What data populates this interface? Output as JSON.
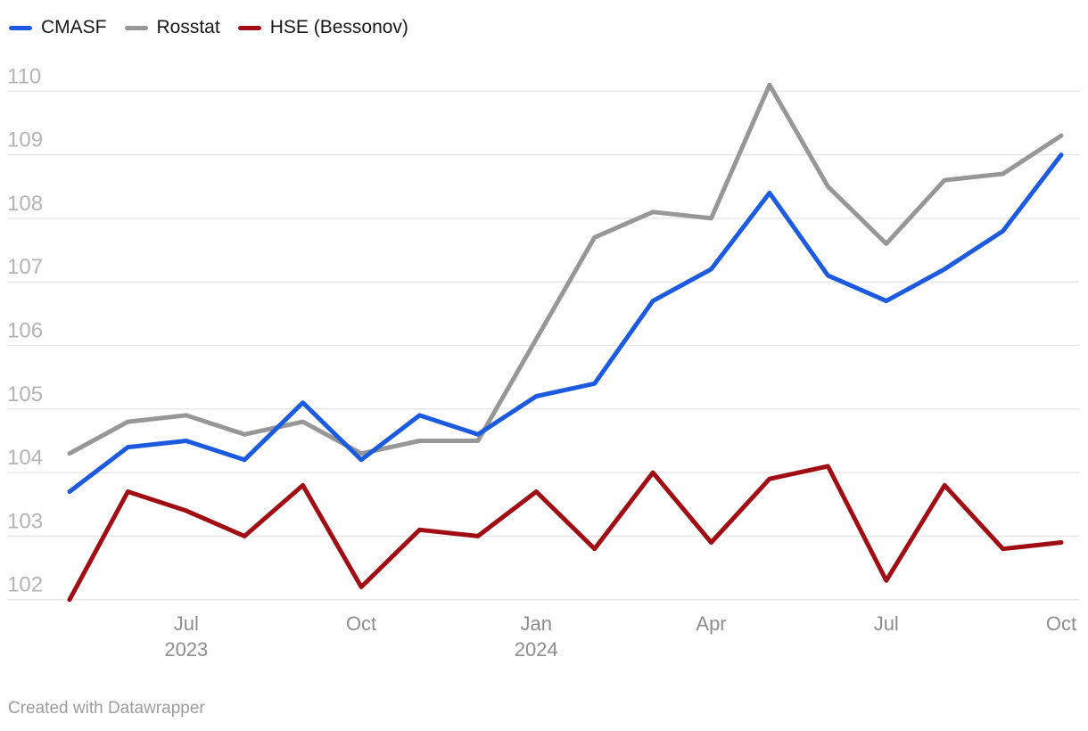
{
  "legend": {
    "items": [
      {
        "label": "CMASF",
        "color": "#1c5bdf"
      },
      {
        "label": "Rosstat",
        "color": "#979797"
      },
      {
        "label": "HSE (Bessonov)",
        "color": "#a00d12"
      }
    ]
  },
  "footer": {
    "text": "Created with Datawrapper"
  },
  "chart_data": {
    "type": "line",
    "x": [
      "2023-05",
      "2023-06",
      "2023-07",
      "2023-08",
      "2023-09",
      "2023-10",
      "2023-11",
      "2023-12",
      "2024-01",
      "2024-02",
      "2024-03",
      "2024-04",
      "2024-05",
      "2024-06",
      "2024-07",
      "2024-08",
      "2024-09",
      "2024-10"
    ],
    "series": [
      {
        "name": "CMASF",
        "color": "#1c5bdf",
        "values": [
          103.7,
          104.4,
          104.5,
          104.2,
          105.1,
          104.2,
          104.9,
          104.6,
          105.2,
          105.4,
          106.7,
          107.2,
          108.4,
          107.1,
          106.7,
          107.2,
          107.8,
          109.0
        ]
      },
      {
        "name": "Rosstat",
        "color": "#979797",
        "values": [
          104.3,
          104.8,
          104.9,
          104.6,
          104.8,
          104.3,
          104.5,
          104.5,
          106.1,
          107.7,
          108.1,
          108.0,
          110.1,
          108.5,
          107.6,
          108.6,
          108.7,
          109.3
        ]
      },
      {
        "name": "HSE (Bessonov)",
        "color": "#a00d12",
        "values": [
          102.0,
          103.7,
          103.4,
          103.0,
          103.8,
          102.2,
          103.1,
          103.0,
          103.7,
          102.8,
          104.0,
          102.9,
          103.9,
          104.1,
          102.3,
          103.8,
          102.8,
          102.9
        ]
      }
    ],
    "title": "",
    "xlabel": "",
    "ylabel": "",
    "ylim": [
      102,
      110
    ],
    "yticks": [
      102,
      103,
      104,
      105,
      106,
      107,
      108,
      109,
      110
    ],
    "xticks": [
      {
        "index": 2,
        "label": "Jul",
        "year": "2023"
      },
      {
        "index": 5,
        "label": "Oct",
        "year": ""
      },
      {
        "index": 8,
        "label": "Jan",
        "year": "2024"
      },
      {
        "index": 11,
        "label": "Apr",
        "year": ""
      },
      {
        "index": 14,
        "label": "Jul",
        "year": ""
      },
      {
        "index": 17,
        "label": "Oct",
        "year": ""
      }
    ],
    "grid": true,
    "legend_position": "top-left",
    "colors": {
      "gridline": "#e8e8e8",
      "y_tick_label": "#b4b4b4",
      "x_tick_label": "#8d8d8d",
      "legend_text": "#181818",
      "footer_text": "#9c9c9c",
      "background": "#ffffff"
    }
  }
}
